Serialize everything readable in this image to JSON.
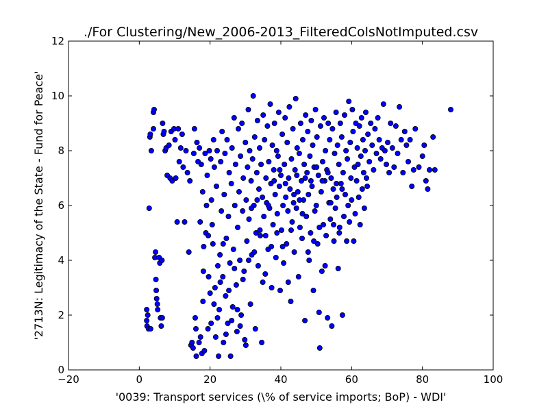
{
  "chart_data": {
    "type": "scatter",
    "title": "./For Clustering/New_2006-2013_FilteredColsNotImputed.csv",
    "xlabel": "'0039: Transport services  (\\% of service imports; BoP) - WDI'",
    "ylabel": "'2713N: Legitimacy of the State - Fund for Peace'",
    "xlim": [
      -20,
      100
    ],
    "ylim": [
      0,
      12
    ],
    "xticks": [
      "−20",
      "0",
      "20",
      "40",
      "60",
      "80",
      "100"
    ],
    "yticks": [
      "0",
      "2",
      "4",
      "6",
      "8",
      "10",
      "12"
    ],
    "grid": false,
    "legend": "none",
    "marker_color": "#0000ff",
    "marker_edge": "#000000",
    "points": [
      [
        2.8,
        5.9
      ],
      [
        2.1,
        2.2
      ],
      [
        2.1,
        1.8
      ],
      [
        2.2,
        1.6
      ],
      [
        2.6,
        1.5
      ],
      [
        3.2,
        1.5
      ],
      [
        2.4,
        2.0
      ],
      [
        3.0,
        8.5
      ],
      [
        3.1,
        8.6
      ],
      [
        3.4,
        8.0
      ],
      [
        4.0,
        9.4
      ],
      [
        4.2,
        9.5
      ],
      [
        4.0,
        8.8
      ],
      [
        4.4,
        4.1
      ],
      [
        4.6,
        4.3
      ],
      [
        4.7,
        3.3
      ],
      [
        4.8,
        2.9
      ],
      [
        4.9,
        2.6
      ],
      [
        5.1,
        2.4
      ],
      [
        5.2,
        2.2
      ],
      [
        5.6,
        4.1
      ],
      [
        5.8,
        3.9
      ],
      [
        6.0,
        1.9
      ],
      [
        6.2,
        1.6
      ],
      [
        6.4,
        4.0
      ],
      [
        6.5,
        1.9
      ],
      [
        6.6,
        9.0
      ],
      [
        6.8,
        8.6
      ],
      [
        7.0,
        8.7
      ],
      [
        7.3,
        8.0
      ],
      [
        7.6,
        8.1
      ],
      [
        7.9,
        7.1
      ],
      [
        8.4,
        8.2
      ],
      [
        8.7,
        7.0
      ],
      [
        9.0,
        8.7
      ],
      [
        9.3,
        6.9
      ],
      [
        9.8,
        8.8
      ],
      [
        10.1,
        8.4
      ],
      [
        10.3,
        7.0
      ],
      [
        10.7,
        5.4
      ],
      [
        11.0,
        8.8
      ],
      [
        11.3,
        7.6
      ],
      [
        11.7,
        8.1
      ],
      [
        12.1,
        8.6
      ],
      [
        12.4,
        7.4
      ],
      [
        12.8,
        5.4
      ],
      [
        13.2,
        8.0
      ],
      [
        13.6,
        7.2
      ],
      [
        14.0,
        4.3
      ],
      [
        14.3,
        6.9
      ],
      [
        14.6,
        0.9
      ],
      [
        14.9,
        1.0
      ],
      [
        15.2,
        0.8
      ],
      [
        15.4,
        7.9
      ],
      [
        15.6,
        8.8
      ],
      [
        15.8,
        1.9
      ],
      [
        16.0,
        1.5
      ],
      [
        16.1,
        0.5
      ],
      [
        16.3,
        8.3
      ],
      [
        16.6,
        7.6
      ],
      [
        16.9,
        1.0
      ],
      [
        17.0,
        8.1
      ],
      [
        17.3,
        1.2
      ],
      [
        17.5,
        7.5
      ],
      [
        17.7,
        0.6
      ],
      [
        17.9,
        6.5
      ],
      [
        18.0,
        2.5
      ],
      [
        18.2,
        4.5
      ],
      [
        18.4,
        0.7
      ],
      [
        18.6,
        7.9
      ],
      [
        18.8,
        5.0
      ],
      [
        19.0,
        6.0
      ],
      [
        19.2,
        7.1
      ],
      [
        19.4,
        1.5
      ],
      [
        19.6,
        3.4
      ],
      [
        19.8,
        8.0
      ],
      [
        20.0,
        2.8
      ],
      [
        20.2,
        7.7
      ],
      [
        20.4,
        6.2
      ],
      [
        20.6,
        5.3
      ],
      [
        20.8,
        4.6
      ],
      [
        21.0,
        8.4
      ],
      [
        21.2,
        7.4
      ],
      [
        21.4,
        3.0
      ],
      [
        21.6,
        1.2
      ],
      [
        21.8,
        6.7
      ],
      [
        22.0,
        8.0
      ],
      [
        22.2,
        3.8
      ],
      [
        22.4,
        0.5
      ],
      [
        22.6,
        2.2
      ],
      [
        22.8,
        4.2
      ],
      [
        23.0,
        7.6
      ],
      [
        23.2,
        5.8
      ],
      [
        23.4,
        8.7
      ],
      [
        23.6,
        3.4
      ],
      [
        23.8,
        1.0
      ],
      [
        24.0,
        6.4
      ],
      [
        24.2,
        7.9
      ],
      [
        24.4,
        2.7
      ],
      [
        24.6,
        4.8
      ],
      [
        24.8,
        8.4
      ],
      [
        25.0,
        1.7
      ],
      [
        25.2,
        5.6
      ],
      [
        25.4,
        7.2
      ],
      [
        25.6,
        3.9
      ],
      [
        25.8,
        0.5
      ],
      [
        26.0,
        6.8
      ],
      [
        26.2,
        8.1
      ],
      [
        26.4,
        2.3
      ],
      [
        26.6,
        4.4
      ],
      [
        26.8,
        9.2
      ],
      [
        27.0,
        6.0
      ],
      [
        27.2,
        7.5
      ],
      [
        27.4,
        3.1
      ],
      [
        27.6,
        1.4
      ],
      [
        27.8,
        5.2
      ],
      [
        28.0,
        8.8
      ],
      [
        28.2,
        6.5
      ],
      [
        28.4,
        4.0
      ],
      [
        28.6,
        7.8
      ],
      [
        28.8,
        2.0
      ],
      [
        29.0,
        9.0
      ],
      [
        29.2,
        5.8
      ],
      [
        29.4,
        7.0
      ],
      [
        29.6,
        3.6
      ],
      [
        29.8,
        1.1
      ],
      [
        30.0,
        8.3
      ],
      [
        30.2,
        6.2
      ],
      [
        30.4,
        4.7
      ],
      [
        30.6,
        7.4
      ],
      [
        30.8,
        9.5
      ],
      [
        31.0,
        5.5
      ],
      [
        31.2,
        8.0
      ],
      [
        31.4,
        2.4
      ],
      [
        31.6,
        6.9
      ],
      [
        31.8,
        4.2
      ],
      [
        32.0,
        7.7
      ],
      [
        32.2,
        10.0
      ],
      [
        32.4,
        6.0
      ],
      [
        32.6,
        8.5
      ],
      [
        32.8,
        1.5
      ],
      [
        33.0,
        5.0
      ],
      [
        33.2,
        7.2
      ],
      [
        33.4,
        9.1
      ],
      [
        33.6,
        3.8
      ],
      [
        33.8,
        6.6
      ],
      [
        34.0,
        8.1
      ],
      [
        34.2,
        4.9
      ],
      [
        34.4,
        7.5
      ],
      [
        34.6,
        1.0
      ],
      [
        34.8,
        6.3
      ],
      [
        35.0,
        9.3
      ],
      [
        35.2,
        5.6
      ],
      [
        35.4,
        8.4
      ],
      [
        35.6,
        3.5
      ],
      [
        35.8,
        7.0
      ],
      [
        36.0,
        6.1
      ],
      [
        36.2,
        8.9
      ],
      [
        36.4,
        4.4
      ],
      [
        36.6,
        7.6
      ],
      [
        36.8,
        5.9
      ],
      [
        37.0,
        9.7
      ],
      [
        37.2,
        6.8
      ],
      [
        37.4,
        3.0
      ],
      [
        37.6,
        8.2
      ],
      [
        37.8,
        5.3
      ],
      [
        38.0,
        7.3
      ],
      [
        38.2,
        9.0
      ],
      [
        38.4,
        6.4
      ],
      [
        38.6,
        4.1
      ],
      [
        38.8,
        8.0
      ],
      [
        39.0,
        5.7
      ],
      [
        39.2,
        7.8
      ],
      [
        39.4,
        9.4
      ],
      [
        39.6,
        6.7
      ],
      [
        39.8,
        2.9
      ],
      [
        40.0,
        7.1
      ],
      [
        40.2,
        5.1
      ],
      [
        40.4,
        8.6
      ],
      [
        40.6,
        6.0
      ],
      [
        40.8,
        3.9
      ],
      [
        41.0,
        7.5
      ],
      [
        41.2,
        9.2
      ],
      [
        41.4,
        6.3
      ],
      [
        41.6,
        4.6
      ],
      [
        41.8,
        8.3
      ],
      [
        42.0,
        5.8
      ],
      [
        42.2,
        7.0
      ],
      [
        42.4,
        9.6
      ],
      [
        42.6,
        6.6
      ],
      [
        42.8,
        2.5
      ],
      [
        43.0,
        7.7
      ],
      [
        43.2,
        5.4
      ],
      [
        43.4,
        8.8
      ],
      [
        43.6,
        6.1
      ],
      [
        43.8,
        4.3
      ],
      [
        44.0,
        7.3
      ],
      [
        44.2,
        9.9
      ],
      [
        44.4,
        5.9
      ],
      [
        44.6,
        8.1
      ],
      [
        44.8,
        6.5
      ],
      [
        45.0,
        3.4
      ],
      [
        45.2,
        7.9
      ],
      [
        45.4,
        5.2
      ],
      [
        45.6,
        9.0
      ],
      [
        45.8,
        6.9
      ],
      [
        46.0,
        4.8
      ],
      [
        46.2,
        8.4
      ],
      [
        46.4,
        6.2
      ],
      [
        46.6,
        7.5
      ],
      [
        46.8,
        1.8
      ],
      [
        47.0,
        9.3
      ],
      [
        47.2,
        5.6
      ],
      [
        47.4,
        7.2
      ],
      [
        47.6,
        8.7
      ],
      [
        47.8,
        6.4
      ],
      [
        48.0,
        4.0
      ],
      [
        48.2,
        7.8
      ],
      [
        48.4,
        5.0
      ],
      [
        48.6,
        9.1
      ],
      [
        48.8,
        6.7
      ],
      [
        49.0,
        8.2
      ],
      [
        49.2,
        2.9
      ],
      [
        49.4,
        7.4
      ],
      [
        49.6,
        5.8
      ],
      [
        49.8,
        9.5
      ],
      [
        50.0,
        6.0
      ],
      [
        50.2,
        8.5
      ],
      [
        50.4,
        4.6
      ],
      [
        50.6,
        7.1
      ],
      [
        50.8,
        2.1
      ],
      [
        51.0,
        0.8
      ],
      [
        51.2,
        8.9
      ],
      [
        51.4,
        6.5
      ],
      [
        51.6,
        3.6
      ],
      [
        51.8,
        7.6
      ],
      [
        52.0,
        5.3
      ],
      [
        52.2,
        9.2
      ],
      [
        52.4,
        6.9
      ],
      [
        52.6,
        8.0
      ],
      [
        52.8,
        4.9
      ],
      [
        53.0,
        7.3
      ],
      [
        53.2,
        1.9
      ],
      [
        53.4,
        9.0
      ],
      [
        53.6,
        6.1
      ],
      [
        53.8,
        8.4
      ],
      [
        54.0,
        5.5
      ],
      [
        54.2,
        7.0
      ],
      [
        54.4,
        1.6
      ],
      [
        54.6,
        8.8
      ],
      [
        54.8,
        6.6
      ],
      [
        55.0,
        4.7
      ],
      [
        55.2,
        7.9
      ],
      [
        55.4,
        5.9
      ],
      [
        55.6,
        9.4
      ],
      [
        55.8,
        6.3
      ],
      [
        56.0,
        8.2
      ],
      [
        56.2,
        3.7
      ],
      [
        56.4,
        7.5
      ],
      [
        56.6,
        5.2
      ],
      [
        56.8,
        9.0
      ],
      [
        57.0,
        6.8
      ],
      [
        57.2,
        8.5
      ],
      [
        57.4,
        2.0
      ],
      [
        57.6,
        7.2
      ],
      [
        57.8,
        5.6
      ],
      [
        58.0,
        9.3
      ],
      [
        58.2,
        6.4
      ],
      [
        58.4,
        8.0
      ],
      [
        58.6,
        4.7
      ],
      [
        58.8,
        7.7
      ],
      [
        59.0,
        6.0
      ],
      [
        59.2,
        9.8
      ],
      [
        59.4,
        5.4
      ],
      [
        59.6,
        8.3
      ],
      [
        59.8,
        7.0
      ],
      [
        60.0,
        6.2
      ],
      [
        60.2,
        9.5
      ],
      [
        60.4,
        8.7
      ],
      [
        60.6,
        4.7
      ],
      [
        60.8,
        7.4
      ],
      [
        61.0,
        5.7
      ],
      [
        61.2,
        9.0
      ],
      [
        61.4,
        6.9
      ],
      [
        61.6,
        8.1
      ],
      [
        61.8,
        7.5
      ],
      [
        62.0,
        6.3
      ],
      [
        62.2,
        8.9
      ],
      [
        62.4,
        5.3
      ],
      [
        62.6,
        7.8
      ],
      [
        62.8,
        9.2
      ],
      [
        63.0,
        6.6
      ],
      [
        63.2,
        8.4
      ],
      [
        63.4,
        7.2
      ],
      [
        63.6,
        5.9
      ],
      [
        63.8,
        8.0
      ],
      [
        64.0,
        9.4
      ],
      [
        64.2,
        7.0
      ],
      [
        64.4,
        6.7
      ],
      [
        64.6,
        8.6
      ],
      [
        65.0,
        7.6
      ],
      [
        65.4,
        9.0
      ],
      [
        65.8,
        8.2
      ],
      [
        66.2,
        7.3
      ],
      [
        66.6,
        8.8
      ],
      [
        67.0,
        7.9
      ],
      [
        67.4,
        9.2
      ],
      [
        67.8,
        8.4
      ],
      [
        68.2,
        7.7
      ],
      [
        68.6,
        8.1
      ],
      [
        69.0,
        9.7
      ],
      [
        69.4,
        8.0
      ],
      [
        69.8,
        7.5
      ],
      [
        70.2,
        8.3
      ],
      [
        70.6,
        7.2
      ],
      [
        71.0,
        9.0
      ],
      [
        71.5,
        8.1
      ],
      [
        72.0,
        7.4
      ],
      [
        72.5,
        8.9
      ],
      [
        73.0,
        7.9
      ],
      [
        73.5,
        9.6
      ],
      [
        74.0,
        8.4
      ],
      [
        74.5,
        7.2
      ],
      [
        75.0,
        8.7
      ],
      [
        75.5,
        8.2
      ],
      [
        76.0,
        7.6
      ],
      [
        76.5,
        8.4
      ],
      [
        77.0,
        6.7
      ],
      [
        77.5,
        7.3
      ],
      [
        78.0,
        8.8
      ],
      [
        79.0,
        7.4
      ],
      [
        80.0,
        7.8
      ],
      [
        80.5,
        8.2
      ],
      [
        81.0,
        6.9
      ],
      [
        81.5,
        6.6
      ],
      [
        82.0,
        7.3
      ],
      [
        83.0,
        8.5
      ],
      [
        83.5,
        7.3
      ],
      [
        88.0,
        9.5
      ],
      [
        17.2,
        5.4
      ],
      [
        18.1,
        3.6
      ],
      [
        19.5,
        4.9
      ],
      [
        20.3,
        1.7
      ],
      [
        21.1,
        2.4
      ],
      [
        22.1,
        1.9
      ],
      [
        22.9,
        3.2
      ],
      [
        23.7,
        4.6
      ],
      [
        24.5,
        1.3
      ],
      [
        25.3,
        2.9
      ],
      [
        26.1,
        1.8
      ],
      [
        26.9,
        3.7
      ],
      [
        27.7,
        2.2
      ],
      [
        28.5,
        1.6
      ],
      [
        29.3,
        3.3
      ],
      [
        30.1,
        0.9
      ],
      [
        30.9,
        4.0
      ],
      [
        31.7,
        5.9
      ],
      [
        32.5,
        4.3
      ],
      [
        33.3,
        6.2
      ],
      [
        34.1,
        5.1
      ],
      [
        34.9,
        3.2
      ],
      [
        35.7,
        4.9
      ],
      [
        36.5,
        6.0
      ],
      [
        37.3,
        4.5
      ],
      [
        38.1,
        6.9
      ],
      [
        38.9,
        5.0
      ],
      [
        39.7,
        7.3
      ],
      [
        40.5,
        4.5
      ],
      [
        41.3,
        6.8
      ],
      [
        42.1,
        3.2
      ],
      [
        42.9,
        5.1
      ],
      [
        43.7,
        6.4
      ],
      [
        44.5,
        7.1
      ],
      [
        45.3,
        6.2
      ],
      [
        46.1,
        5.7
      ],
      [
        46.9,
        7.0
      ],
      [
        47.7,
        4.3
      ],
      [
        48.5,
        6.9
      ],
      [
        49.3,
        4.7
      ],
      [
        50.1,
        7.4
      ],
      [
        50.9,
        5.2
      ],
      [
        51.7,
        6.9
      ],
      [
        52.5,
        3.8
      ],
      [
        53.3,
        7.2
      ],
      [
        54.1,
        6.1
      ],
      [
        54.9,
        5.3
      ],
      [
        55.7,
        6.8
      ],
      [
        56.5,
        5.0
      ],
      [
        57.3,
        6.6
      ]
    ]
  }
}
